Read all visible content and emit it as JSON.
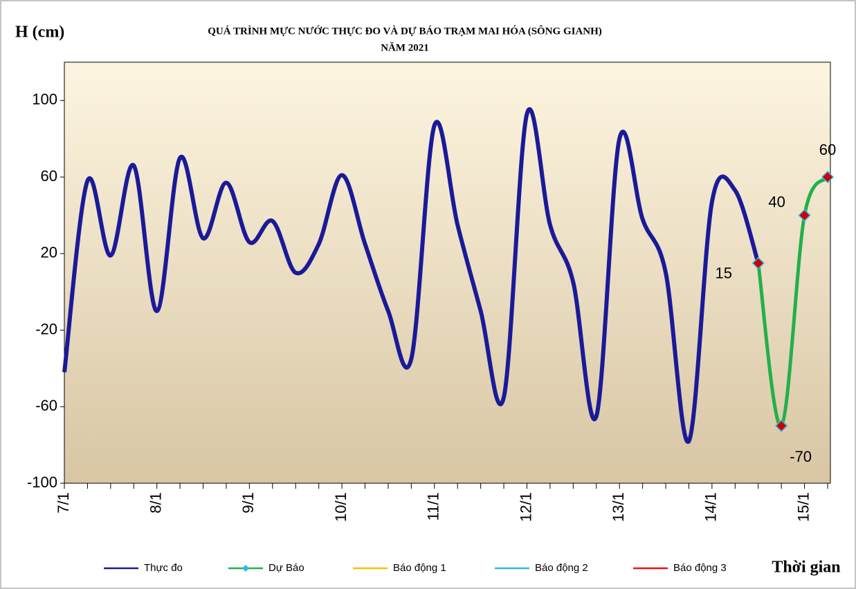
{
  "chart_data": {
    "type": "line",
    "title": "QUÁ TRÌNH MỰC NƯỚC THỰC ĐO VÀ DỰ BÁO TRẠM MAI HÓA (SÔNG GIANH)",
    "subtitle": "NĂM 2021",
    "y_label": "H (cm)",
    "x_label": "Thời gian",
    "categories": [
      "7/1",
      null,
      null,
      null,
      "8/1",
      null,
      null,
      null,
      "9/1",
      null,
      null,
      null,
      "10/1",
      null,
      null,
      null,
      "11/1",
      null,
      null,
      null,
      "12/1",
      null,
      null,
      null,
      "13/1",
      null,
      null,
      null,
      "14/1",
      null,
      null,
      null,
      "15/1",
      null
    ],
    "ylim": [
      -100,
      120
    ],
    "yticks": [
      -100,
      -60,
      -20,
      20,
      60,
      100
    ],
    "series": [
      {
        "name": "Thực đo",
        "color": "#1a1a99",
        "values": [
          -42,
          58,
          19,
          66,
          -10,
          70,
          28,
          57,
          26,
          37,
          10,
          25,
          61,
          25,
          -10,
          -35,
          87,
          35,
          -10,
          -55,
          93,
          35,
          5,
          -65,
          80,
          38,
          10,
          -78,
          47,
          53,
          15,
          null,
          null,
          null
        ]
      },
      {
        "name": "Dự Báo",
        "color": "#22b04a",
        "values": [
          null,
          null,
          null,
          null,
          null,
          null,
          null,
          null,
          null,
          null,
          null,
          null,
          null,
          null,
          null,
          null,
          null,
          null,
          null,
          null,
          null,
          null,
          null,
          null,
          null,
          null,
          null,
          null,
          null,
          null,
          15,
          -70,
          40,
          60
        ]
      },
      {
        "name": "Báo động 1",
        "color": "#ffc000",
        "values": [
          null,
          null,
          null,
          null,
          null,
          null,
          null,
          null,
          null,
          null,
          null,
          null,
          null,
          null,
          null,
          null,
          null,
          null,
          null,
          null,
          null,
          null,
          null,
          null,
          null,
          null,
          null,
          null,
          null,
          null,
          null,
          null,
          null,
          null
        ]
      },
      {
        "name": "Báo động 2",
        "color": "#33b5e5",
        "values": [
          null,
          null,
          null,
          null,
          null,
          null,
          null,
          null,
          null,
          null,
          null,
          null,
          null,
          null,
          null,
          null,
          null,
          null,
          null,
          null,
          null,
          null,
          null,
          null,
          null,
          null,
          null,
          null,
          null,
          null,
          null,
          null,
          null,
          null
        ]
      },
      {
        "name": "Báo động 3",
        "color": "#ee1111",
        "values": [
          null,
          null,
          null,
          null,
          null,
          null,
          null,
          null,
          null,
          null,
          null,
          null,
          null,
          null,
          null,
          null,
          null,
          null,
          null,
          null,
          null,
          null,
          null,
          null,
          null,
          null,
          null,
          null,
          null,
          null,
          null,
          null,
          null,
          null
        ]
      }
    ]
  }
}
